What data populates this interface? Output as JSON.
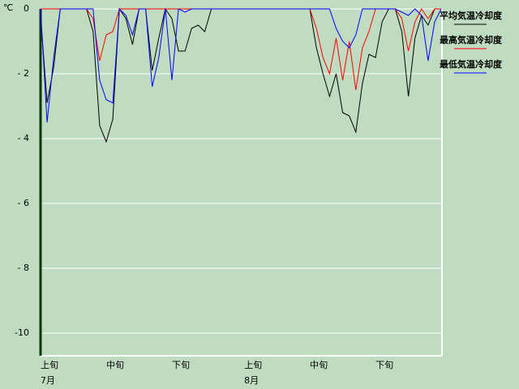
{
  "chart_data": {
    "type": "line",
    "unit_label": "℃",
    "categories": [
      "上旬",
      null,
      null,
      null,
      null,
      null,
      null,
      null,
      null,
      null,
      "中旬",
      null,
      null,
      null,
      null,
      null,
      null,
      null,
      null,
      null,
      "下旬",
      null,
      null,
      null,
      null,
      null,
      null,
      null,
      null,
      null,
      null,
      "上旬",
      null,
      null,
      null,
      null,
      null,
      null,
      null,
      null,
      null,
      "中旬",
      null,
      null,
      null,
      null,
      null,
      null,
      null,
      null,
      null,
      "下旬",
      null,
      null,
      null,
      null,
      null,
      null,
      null,
      null,
      null,
      null
    ],
    "month_labels": [
      "7月",
      null,
      null,
      null,
      null,
      null,
      null,
      null,
      null,
      null,
      null,
      null,
      null,
      null,
      null,
      null,
      null,
      null,
      null,
      null,
      null,
      null,
      null,
      null,
      null,
      null,
      null,
      null,
      null,
      null,
      null,
      "8月",
      null,
      null,
      null,
      null,
      null,
      null,
      null,
      null,
      null,
      null,
      null,
      null,
      null,
      null,
      null,
      null,
      null,
      null,
      null,
      null,
      null,
      null,
      null,
      null,
      null,
      null,
      null,
      null,
      null,
      null
    ],
    "ylim": [
      -10.7,
      0
    ],
    "yticks": [
      0,
      {
        "value": -2,
        "label": "- 2"
      },
      {
        "value": -4,
        "label": "- 4"
      },
      {
        "value": -6,
        "label": "- 6"
      },
      {
        "value": -8,
        "label": "- 8"
      },
      -10
    ],
    "grid": true,
    "series": [
      {
        "name": "平均気温冷却度",
        "color": "#000000",
        "values": [
          -0.2,
          -2.9,
          -1.8,
          0,
          0,
          0,
          0,
          0,
          -0.7,
          -3.6,
          -4.1,
          -3.4,
          0,
          -0.3,
          -1.1,
          0,
          0,
          -1.9,
          -0.9,
          0,
          -0.3,
          -1.3,
          -1.3,
          -0.6,
          -0.5,
          -0.7,
          0,
          0,
          0,
          0,
          0,
          0,
          0,
          0,
          0,
          0,
          0,
          0,
          0,
          0,
          0,
          0,
          -1.2,
          -2,
          -2.7,
          -2,
          -3.2,
          -3.3,
          -3.8,
          -2.3,
          -1.4,
          -1.5,
          -0.4,
          0,
          0,
          -0.7,
          -2.7,
          -0.9,
          -0.2,
          -0.5,
          0,
          0
        ]
      },
      {
        "name": "最高気温冷却度",
        "color": "#ff0000",
        "values": [
          0,
          0,
          0,
          0,
          0,
          0,
          0,
          0,
          -0.3,
          -1.6,
          -0.8,
          -0.7,
          0,
          0,
          0,
          0,
          0,
          0,
          0,
          0,
          0,
          0,
          0,
          0,
          0,
          0,
          0,
          0,
          0,
          0,
          0,
          0,
          0,
          0,
          0,
          0,
          0,
          0,
          0,
          0,
          0,
          0,
          -0.6,
          -1.5,
          -2,
          -0.9,
          -2.2,
          -1,
          -2.5,
          -1.2,
          -0.7,
          0,
          0,
          0,
          0,
          -0.3,
          -1.3,
          -0.4,
          0,
          -0.3,
          0,
          0
        ]
      },
      {
        "name": "最低気温冷却度",
        "color": "#0000ff",
        "values": [
          0,
          -3.5,
          -1.5,
          0,
          0,
          0,
          0,
          0,
          0,
          -2.2,
          -2.8,
          -2.9,
          0,
          -0.2,
          -0.8,
          0,
          0,
          -2.4,
          -1.5,
          0,
          -2.2,
          0,
          -0.1,
          0,
          0,
          0,
          0,
          0,
          0,
          0,
          0,
          0,
          0,
          0,
          0,
          0,
          0,
          0,
          0,
          0,
          0,
          0,
          0,
          0,
          0,
          -0.6,
          -1,
          -1.2,
          -0.8,
          0,
          0,
          0,
          0,
          0,
          0,
          -0.1,
          -0.2,
          0,
          -0.2,
          -1.6,
          -0.4,
          0
        ]
      }
    ]
  }
}
